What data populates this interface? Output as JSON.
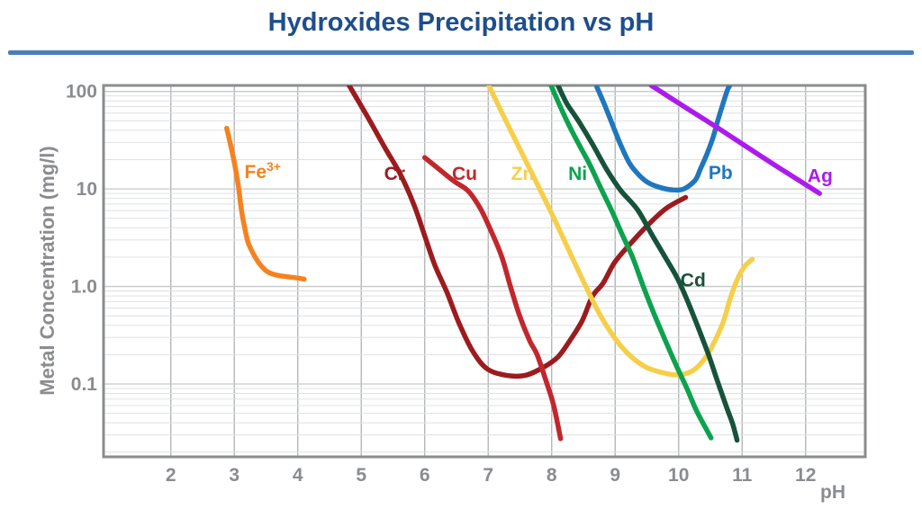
{
  "title": {
    "text": "Hydroxides Precipitation vs pH"
  },
  "colors": {
    "title_text": "#1E4E8C",
    "title_rule": "#4A7EBB",
    "axis_text": "#8A8C8F",
    "frame": "#8A8C8E",
    "grid_vertical": "#AFB1B3",
    "grid_major": "#C6C8CA",
    "grid_minor": "#DFE0E2",
    "background": "#FFFFFF"
  },
  "chart_data": {
    "type": "line",
    "title": "Hydroxides Precipitation vs pH",
    "xlabel": "pH",
    "ylabel": "Metal Concentration (mg/l)",
    "xscale": "linear",
    "yscale": "log",
    "grid": true,
    "legend": "inline-curve-labels",
    "xlim": [
      0.94,
      12.94
    ],
    "ylim": [
      0.0179,
      115.3
    ],
    "x_ticks": [
      {
        "label": "2",
        "value": 2
      },
      {
        "label": "3",
        "value": 3
      },
      {
        "label": "4",
        "value": 4
      },
      {
        "label": "5",
        "value": 5
      },
      {
        "label": "6",
        "value": 6
      },
      {
        "label": "7",
        "value": 7
      },
      {
        "label": "8",
        "value": 8
      },
      {
        "label": "9",
        "value": 9
      },
      {
        "label": "10",
        "value": 10
      },
      {
        "label": "11",
        "value": 11
      },
      {
        "label": "12",
        "value": 12
      }
    ],
    "y_ticks": [
      {
        "label": "100",
        "value": 100
      },
      {
        "label": "10",
        "value": 10
      },
      {
        "label": "1.0",
        "value": 1.0
      },
      {
        "label": "0.1",
        "value": 0.1
      }
    ],
    "series": [
      {
        "name": "Fe3+",
        "color": "#F5821F",
        "width": 5.5,
        "label": {
          "text": "Fe",
          "sup": "3+",
          "ph": 3.16,
          "value": 13
        },
        "points": [
          [
            2.88,
            42
          ],
          [
            2.96,
            25
          ],
          [
            3.02,
            16
          ],
          [
            3.07,
            10
          ],
          [
            3.11,
            6.2
          ],
          [
            3.16,
            4.1
          ],
          [
            3.22,
            2.8
          ],
          [
            3.31,
            2.1
          ],
          [
            3.4,
            1.7
          ],
          [
            3.52,
            1.42
          ],
          [
            3.66,
            1.31
          ],
          [
            3.83,
            1.26
          ],
          [
            4.0,
            1.22
          ],
          [
            4.1,
            1.19
          ]
        ]
      },
      {
        "name": "Cr",
        "color": "#9C1B1E",
        "width": 5.5,
        "label": {
          "text": "Cr",
          "ph": 5.36,
          "value": 12.4
        },
        "points": [
          [
            4.81,
            115
          ],
          [
            5.12,
            52
          ],
          [
            5.38,
            26
          ],
          [
            5.62,
            14
          ],
          [
            5.83,
            6.9
          ],
          [
            6.0,
            3.3
          ],
          [
            6.16,
            1.65
          ],
          [
            6.35,
            0.87
          ],
          [
            6.54,
            0.42
          ],
          [
            6.75,
            0.22
          ],
          [
            6.97,
            0.145
          ],
          [
            7.25,
            0.124
          ],
          [
            7.57,
            0.122
          ],
          [
            7.86,
            0.147
          ],
          [
            8.1,
            0.19
          ],
          [
            8.28,
            0.275
          ],
          [
            8.48,
            0.445
          ],
          [
            8.64,
            0.79
          ],
          [
            8.81,
            1.08
          ],
          [
            8.99,
            1.76
          ],
          [
            9.23,
            2.7
          ],
          [
            9.52,
            4.3
          ],
          [
            9.8,
            6.3
          ],
          [
            10.11,
            8.2
          ]
        ]
      },
      {
        "name": "Cu",
        "color": "#C1272D",
        "width": 5.5,
        "label": {
          "text": "Cu",
          "ph": 6.43,
          "value": 12.4
        },
        "points": [
          [
            6.0,
            21
          ],
          [
            6.26,
            15.3
          ],
          [
            6.47,
            11.9
          ],
          [
            6.68,
            9.6
          ],
          [
            6.87,
            6.4
          ],
          [
            7.03,
            3.9
          ],
          [
            7.21,
            2.05
          ],
          [
            7.35,
            1.0
          ],
          [
            7.49,
            0.51
          ],
          [
            7.65,
            0.28
          ],
          [
            7.77,
            0.2
          ],
          [
            7.91,
            0.108
          ],
          [
            8.03,
            0.061
          ],
          [
            8.14,
            0.0275
          ]
        ]
      },
      {
        "name": "Zn",
        "color": "#F6CF4A",
        "width": 5.5,
        "label": {
          "text": "Zn",
          "ph": 7.36,
          "value": 12.4
        },
        "points": [
          [
            7.01,
            115
          ],
          [
            7.32,
            44
          ],
          [
            7.67,
            15.3
          ],
          [
            8.03,
            5.1
          ],
          [
            8.4,
            1.55
          ],
          [
            8.75,
            0.53
          ],
          [
            9.09,
            0.245
          ],
          [
            9.45,
            0.153
          ],
          [
            9.83,
            0.127
          ],
          [
            10.04,
            0.125
          ],
          [
            10.23,
            0.138
          ],
          [
            10.4,
            0.178
          ],
          [
            10.55,
            0.26
          ],
          [
            10.7,
            0.43
          ],
          [
            10.82,
            0.78
          ],
          [
            10.94,
            1.25
          ],
          [
            11.05,
            1.64
          ],
          [
            11.16,
            1.9
          ]
        ]
      },
      {
        "name": "Ni",
        "color": "#0DA24E",
        "width": 5.5,
        "label": {
          "text": "Ni",
          "ph": 8.26,
          "value": 12.4
        },
        "points": [
          [
            7.99,
            115
          ],
          [
            8.13,
            71
          ],
          [
            8.28,
            44
          ],
          [
            8.45,
            27
          ],
          [
            8.6,
            17.8
          ],
          [
            8.78,
            10
          ],
          [
            8.95,
            5.9
          ],
          [
            9.12,
            3.3
          ],
          [
            9.28,
            1.95
          ],
          [
            9.45,
            0.97
          ],
          [
            9.62,
            0.51
          ],
          [
            9.8,
            0.27
          ],
          [
            9.97,
            0.151
          ],
          [
            10.13,
            0.09
          ],
          [
            10.27,
            0.055
          ],
          [
            10.4,
            0.038
          ],
          [
            10.51,
            0.028
          ]
        ]
      },
      {
        "name": "Cd",
        "color": "#17523A",
        "width": 5.5,
        "label": {
          "text": "Cd",
          "ph": 10.03,
          "value": 1.0
        },
        "points": [
          [
            8.1,
            115
          ],
          [
            8.24,
            75
          ],
          [
            8.43,
            49
          ],
          [
            8.64,
            29
          ],
          [
            8.88,
            15.3
          ],
          [
            9.09,
            9.6
          ],
          [
            9.35,
            6.15
          ],
          [
            9.59,
            3.3
          ],
          [
            9.8,
            1.94
          ],
          [
            9.97,
            1.25
          ],
          [
            10.11,
            0.79
          ],
          [
            10.3,
            0.39
          ],
          [
            10.47,
            0.2
          ],
          [
            10.61,
            0.108
          ],
          [
            10.75,
            0.059
          ],
          [
            10.85,
            0.039
          ],
          [
            10.92,
            0.0265
          ]
        ]
      },
      {
        "name": "Pb",
        "color": "#1F77BE",
        "width": 5.5,
        "label": {
          "text": "Pb",
          "ph": 10.47,
          "value": 12.6
        },
        "points": [
          [
            8.71,
            112
          ],
          [
            8.84,
            71
          ],
          [
            8.98,
            42
          ],
          [
            9.09,
            28
          ],
          [
            9.23,
            18.2
          ],
          [
            9.38,
            13.8
          ],
          [
            9.52,
            11.6
          ],
          [
            9.7,
            10.4
          ],
          [
            9.9,
            9.8
          ],
          [
            10.08,
            10.0
          ],
          [
            10.26,
            12.3
          ],
          [
            10.34,
            15.9
          ],
          [
            10.44,
            22.4
          ],
          [
            10.54,
            33.5
          ],
          [
            10.62,
            51
          ],
          [
            10.69,
            72
          ],
          [
            10.77,
            104
          ],
          [
            10.8,
            113
          ]
        ]
      },
      {
        "name": "Ag",
        "color": "#AC1BEC",
        "width": 5.5,
        "label": {
          "text": "Ag",
          "ph": 12.03,
          "value": 11.8
        },
        "points": [
          [
            9.57,
            115
          ],
          [
            10.1,
            69
          ],
          [
            10.6,
            43
          ],
          [
            11.1,
            26.3
          ],
          [
            11.6,
            16.2
          ],
          [
            12.22,
            9.0
          ]
        ]
      }
    ]
  }
}
